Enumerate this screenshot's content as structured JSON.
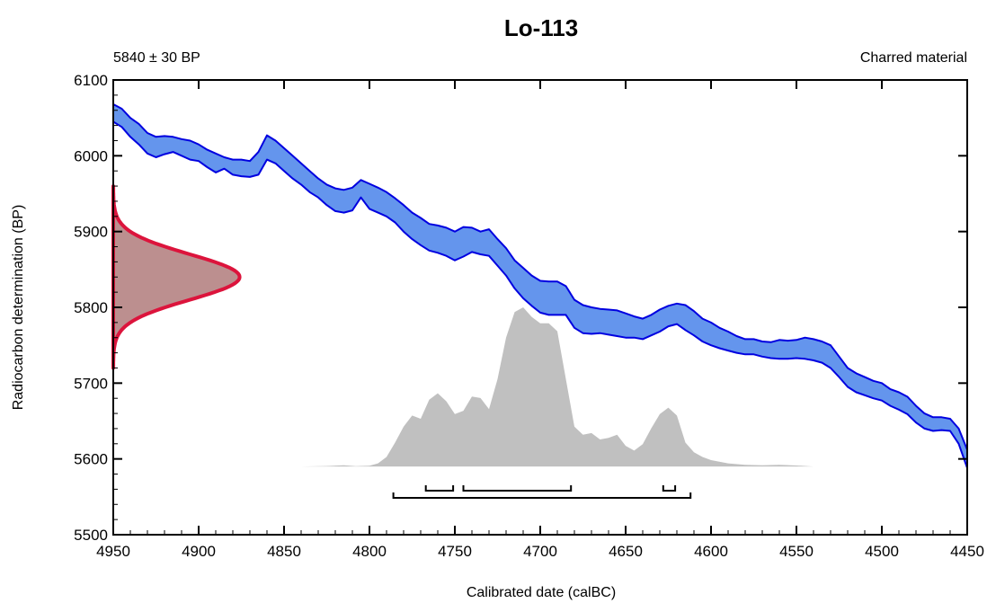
{
  "chart_data": {
    "type": "area",
    "title": "Lo-113",
    "subtitle_left": "5840 ± 30 BP",
    "subtitle_right": "Charred material",
    "xlabel": "Calibrated date (calBC)",
    "ylabel": "Radiocarbon determination (BP)",
    "xlim": [
      4950,
      4450
    ],
    "ylim": [
      5500,
      6100
    ],
    "x_ticks": [
      4950,
      4900,
      4850,
      4800,
      4750,
      4700,
      4650,
      4600,
      4550,
      4500,
      4450
    ],
    "y_ticks": [
      5500,
      5600,
      5700,
      5800,
      5900,
      6000,
      6100
    ],
    "colors": {
      "calibration_fill": "#6495ed",
      "calibration_stroke": "#0000e0",
      "measurement_fill": "#bc8f8f",
      "measurement_stroke": "#dc143c",
      "posterior_fill": "#c0c0c0",
      "range_stroke": "#000000"
    },
    "calibration_curve": {
      "upper": [
        [
          4950,
          6068
        ],
        [
          4945,
          6062
        ],
        [
          4940,
          6050
        ],
        [
          4935,
          6042
        ],
        [
          4930,
          6030
        ],
        [
          4925,
          6025
        ],
        [
          4920,
          6026
        ],
        [
          4915,
          6025
        ],
        [
          4910,
          6022
        ],
        [
          4905,
          6020
        ],
        [
          4900,
          6015
        ],
        [
          4895,
          6008
        ],
        [
          4890,
          6003
        ],
        [
          4885,
          5998
        ],
        [
          4880,
          5995
        ],
        [
          4875,
          5995
        ],
        [
          4870,
          5993
        ],
        [
          4865,
          6005
        ],
        [
          4860,
          6027
        ],
        [
          4855,
          6020
        ],
        [
          4850,
          6010
        ],
        [
          4845,
          6000
        ],
        [
          4840,
          5990
        ],
        [
          4835,
          5980
        ],
        [
          4830,
          5970
        ],
        [
          4825,
          5962
        ],
        [
          4820,
          5957
        ],
        [
          4815,
          5955
        ],
        [
          4810,
          5958
        ],
        [
          4805,
          5968
        ],
        [
          4800,
          5963
        ],
        [
          4795,
          5958
        ],
        [
          4790,
          5952
        ],
        [
          4785,
          5944
        ],
        [
          4780,
          5935
        ],
        [
          4775,
          5925
        ],
        [
          4770,
          5918
        ],
        [
          4765,
          5910
        ],
        [
          4760,
          5908
        ],
        [
          4755,
          5905
        ],
        [
          4750,
          5900
        ],
        [
          4745,
          5906
        ],
        [
          4740,
          5905
        ],
        [
          4735,
          5900
        ],
        [
          4730,
          5903
        ],
        [
          4725,
          5890
        ],
        [
          4720,
          5878
        ],
        [
          4715,
          5862
        ],
        [
          4710,
          5852
        ],
        [
          4705,
          5842
        ],
        [
          4700,
          5835
        ],
        [
          4695,
          5834
        ],
        [
          4690,
          5834
        ],
        [
          4685,
          5828
        ],
        [
          4680,
          5810
        ],
        [
          4675,
          5803
        ],
        [
          4670,
          5800
        ],
        [
          4665,
          5798
        ],
        [
          4660,
          5797
        ],
        [
          4655,
          5796
        ],
        [
          4650,
          5792
        ],
        [
          4645,
          5788
        ],
        [
          4640,
          5785
        ],
        [
          4635,
          5790
        ],
        [
          4630,
          5797
        ],
        [
          4625,
          5802
        ],
        [
          4620,
          5805
        ],
        [
          4615,
          5803
        ],
        [
          4610,
          5795
        ],
        [
          4605,
          5785
        ],
        [
          4600,
          5780
        ],
        [
          4595,
          5773
        ],
        [
          4590,
          5768
        ],
        [
          4585,
          5762
        ],
        [
          4580,
          5758
        ],
        [
          4575,
          5758
        ],
        [
          4570,
          5755
        ],
        [
          4565,
          5754
        ],
        [
          4560,
          5757
        ],
        [
          4555,
          5756
        ],
        [
          4550,
          5757
        ],
        [
          4545,
          5760
        ],
        [
          4540,
          5758
        ],
        [
          4535,
          5755
        ],
        [
          4530,
          5750
        ],
        [
          4525,
          5735
        ],
        [
          4520,
          5720
        ],
        [
          4515,
          5713
        ],
        [
          4510,
          5708
        ],
        [
          4505,
          5703
        ],
        [
          4500,
          5700
        ],
        [
          4495,
          5692
        ],
        [
          4490,
          5688
        ],
        [
          4485,
          5682
        ],
        [
          4480,
          5670
        ],
        [
          4475,
          5660
        ],
        [
          4470,
          5655
        ],
        [
          4465,
          5655
        ],
        [
          4460,
          5653
        ],
        [
          4455,
          5640
        ],
        [
          4450,
          5612
        ]
      ],
      "lower": [
        [
          4950,
          6045
        ],
        [
          4945,
          6038
        ],
        [
          4940,
          6025
        ],
        [
          4935,
          6015
        ],
        [
          4930,
          6003
        ],
        [
          4925,
          5998
        ],
        [
          4920,
          6002
        ],
        [
          4915,
          6005
        ],
        [
          4910,
          6000
        ],
        [
          4905,
          5995
        ],
        [
          4900,
          5993
        ],
        [
          4895,
          5985
        ],
        [
          4890,
          5978
        ],
        [
          4885,
          5983
        ],
        [
          4880,
          5975
        ],
        [
          4875,
          5973
        ],
        [
          4870,
          5972
        ],
        [
          4865,
          5975
        ],
        [
          4860,
          5995
        ],
        [
          4855,
          5990
        ],
        [
          4850,
          5980
        ],
        [
          4845,
          5970
        ],
        [
          4840,
          5962
        ],
        [
          4835,
          5952
        ],
        [
          4830,
          5945
        ],
        [
          4825,
          5935
        ],
        [
          4820,
          5927
        ],
        [
          4815,
          5925
        ],
        [
          4810,
          5928
        ],
        [
          4805,
          5945
        ],
        [
          4800,
          5930
        ],
        [
          4795,
          5925
        ],
        [
          4790,
          5920
        ],
        [
          4785,
          5912
        ],
        [
          4780,
          5900
        ],
        [
          4775,
          5890
        ],
        [
          4770,
          5882
        ],
        [
          4765,
          5875
        ],
        [
          4760,
          5872
        ],
        [
          4755,
          5868
        ],
        [
          4750,
          5862
        ],
        [
          4745,
          5867
        ],
        [
          4740,
          5873
        ],
        [
          4735,
          5870
        ],
        [
          4730,
          5868
        ],
        [
          4725,
          5855
        ],
        [
          4720,
          5842
        ],
        [
          4715,
          5825
        ],
        [
          4710,
          5812
        ],
        [
          4705,
          5802
        ],
        [
          4700,
          5793
        ],
        [
          4695,
          5790
        ],
        [
          4690,
          5790
        ],
        [
          4685,
          5790
        ],
        [
          4680,
          5773
        ],
        [
          4675,
          5766
        ],
        [
          4670,
          5765
        ],
        [
          4665,
          5766
        ],
        [
          4660,
          5764
        ],
        [
          4655,
          5762
        ],
        [
          4650,
          5760
        ],
        [
          4645,
          5760
        ],
        [
          4640,
          5758
        ],
        [
          4635,
          5763
        ],
        [
          4630,
          5768
        ],
        [
          4625,
          5775
        ],
        [
          4620,
          5778
        ],
        [
          4615,
          5770
        ],
        [
          4610,
          5763
        ],
        [
          4605,
          5755
        ],
        [
          4600,
          5750
        ],
        [
          4595,
          5746
        ],
        [
          4590,
          5743
        ],
        [
          4585,
          5740
        ],
        [
          4580,
          5738
        ],
        [
          4575,
          5738
        ],
        [
          4570,
          5735
        ],
        [
          4565,
          5733
        ],
        [
          4560,
          5732
        ],
        [
          4555,
          5732
        ],
        [
          4550,
          5733
        ],
        [
          4545,
          5732
        ],
        [
          4540,
          5730
        ],
        [
          4535,
          5727
        ],
        [
          4530,
          5720
        ],
        [
          4525,
          5708
        ],
        [
          4520,
          5695
        ],
        [
          4515,
          5688
        ],
        [
          4510,
          5684
        ],
        [
          4505,
          5680
        ],
        [
          4500,
          5677
        ],
        [
          4495,
          5670
        ],
        [
          4490,
          5665
        ],
        [
          4485,
          5659
        ],
        [
          4480,
          5648
        ],
        [
          4475,
          5640
        ],
        [
          4470,
          5637
        ],
        [
          4465,
          5638
        ],
        [
          4460,
          5637
        ],
        [
          4455,
          5620
        ],
        [
          4450,
          5588
        ]
      ]
    },
    "measurement_distribution": {
      "mean_bp": 5840,
      "sigma_bp": 30,
      "peak_x": 4876
    },
    "posterior_distribution": {
      "baseline_bp": 5590,
      "points": [
        [
          4840,
          0
        ],
        [
          4825,
          0.003
        ],
        [
          4815,
          0.008
        ],
        [
          4808,
          0.002
        ],
        [
          4800,
          0.005
        ],
        [
          4795,
          0.02
        ],
        [
          4790,
          0.06
        ],
        [
          4785,
          0.15
        ],
        [
          4780,
          0.25
        ],
        [
          4775,
          0.32
        ],
        [
          4770,
          0.3
        ],
        [
          4765,
          0.42
        ],
        [
          4760,
          0.46
        ],
        [
          4755,
          0.41
        ],
        [
          4750,
          0.33
        ],
        [
          4745,
          0.35
        ],
        [
          4740,
          0.44
        ],
        [
          4735,
          0.43
        ],
        [
          4730,
          0.36
        ],
        [
          4725,
          0.55
        ],
        [
          4720,
          0.81
        ],
        [
          4715,
          0.97
        ],
        [
          4710,
          1.0
        ],
        [
          4705,
          0.94
        ],
        [
          4700,
          0.9
        ],
        [
          4695,
          0.9
        ],
        [
          4690,
          0.85
        ],
        [
          4685,
          0.55
        ],
        [
          4680,
          0.25
        ],
        [
          4675,
          0.2
        ],
        [
          4670,
          0.21
        ],
        [
          4665,
          0.17
        ],
        [
          4660,
          0.18
        ],
        [
          4655,
          0.2
        ],
        [
          4650,
          0.13
        ],
        [
          4645,
          0.1
        ],
        [
          4640,
          0.14
        ],
        [
          4635,
          0.24
        ],
        [
          4630,
          0.33
        ],
        [
          4625,
          0.37
        ],
        [
          4620,
          0.32
        ],
        [
          4615,
          0.15
        ],
        [
          4610,
          0.09
        ],
        [
          4605,
          0.06
        ],
        [
          4600,
          0.04
        ],
        [
          4590,
          0.02
        ],
        [
          4580,
          0.01
        ],
        [
          4570,
          0.008
        ],
        [
          4560,
          0.01
        ],
        [
          4550,
          0.006
        ],
        [
          4540,
          0
        ]
      ]
    },
    "ranges": [
      {
        "level": 1,
        "segments": [
          [
            4767,
            4751
          ],
          [
            4745,
            4682
          ],
          [
            4628,
            4621
          ]
        ]
      },
      {
        "level": 2,
        "segments": [
          [
            4786,
            4612
          ]
        ]
      }
    ]
  }
}
